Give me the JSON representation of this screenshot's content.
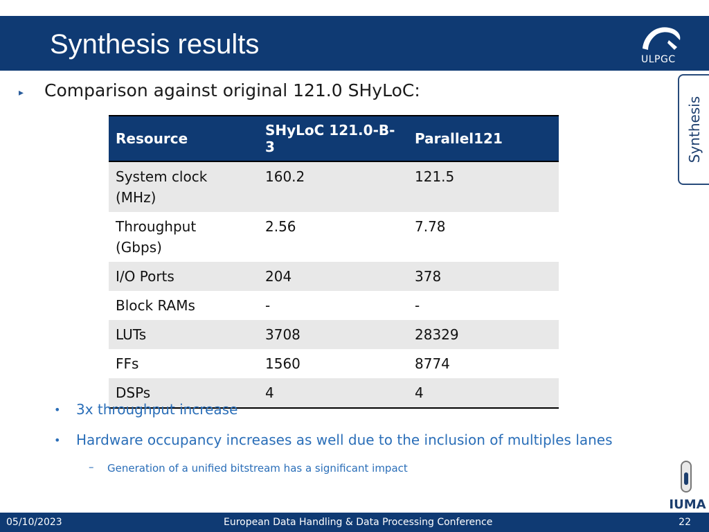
{
  "slide": {
    "title": "Synthesis results",
    "section_tab": "Synthesis",
    "ulpgc_label": "ULPGC",
    "iuma_label": "IUMA",
    "intro": "Comparison against original 121.0 SHyLoC:"
  },
  "table": {
    "headers": [
      "Resource",
      "SHyLoC 121.0-B-3",
      "Parallel121"
    ],
    "rows": [
      [
        "System clock\n(MHz)",
        "160.2",
        "121.5"
      ],
      [
        "Throughput\n(Gbps)",
        "2.56",
        "7.78"
      ],
      [
        "I/O Ports",
        "204",
        "378"
      ],
      [
        "Block RAMs",
        "-",
        "-"
      ],
      [
        "LUTs",
        "3708",
        "28329"
      ],
      [
        "FFs",
        "1560",
        "8774"
      ],
      [
        "DSPs",
        "4",
        "4"
      ]
    ]
  },
  "bullets": [
    "3x throughput increase",
    "Hardware occupancy increases as well due to the inclusion of multiples lanes"
  ],
  "sub_bullet": "Generation of a unified bitstream has a significant impact",
  "footer": {
    "date": "05/10/2023",
    "conference": "European Data Handling & Data Processing Conference",
    "page": "22"
  },
  "colors": {
    "header_bg": "#0f3a73",
    "bullet_text": "#2a6eb8",
    "row_shade": "#e8e8e8"
  }
}
